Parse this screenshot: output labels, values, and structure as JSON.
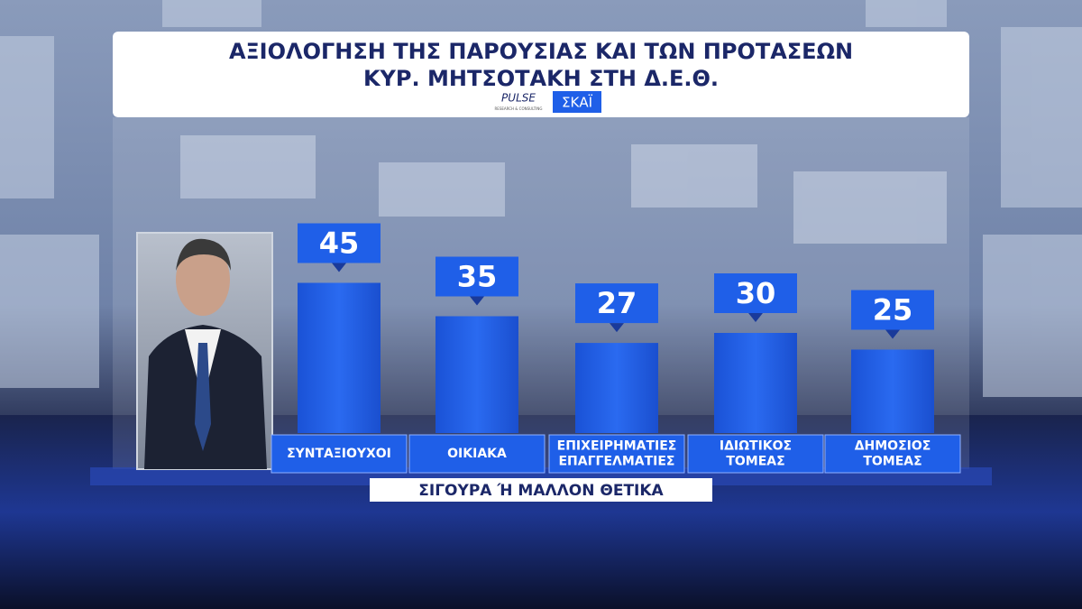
{
  "chart_data": {
    "type": "bar",
    "title": [
      "ΑΞΙΟΛΟΓΗΣΗ ΤΗΣ ΠΑΡΟΥΣΙΑΣ ΚΑΙ ΤΩΝ ΠΡΟΤΑΣΕΩΝ",
      "ΚΥΡ. ΜΗΤΣΟΤΑΚΗ ΣΤΗ Δ.Ε.Θ."
    ],
    "logos": [
      "PULSE",
      "RESEARCH & CONSULTING",
      "ΣΚΑΪ"
    ],
    "categories": [
      "ΣΥΝΤΑΞΙΟΥΧΟΙ",
      "ΟΙΚΙΑΚΑ",
      "ΕΠΙΧΕΙΡΗΜΑΤΙΕΣ\nΕΠΑΓΓΕΛΜΑΤΙΕΣ",
      "ΙΔΙΩΤΙΚΟΣ\nΤΟΜΕΑΣ",
      "ΔΗΜΟΣΙΟΣ\nΤΟΜΕΑΣ"
    ],
    "values": [
      45,
      35,
      27,
      30,
      25
    ],
    "color": "#1f5fe8",
    "x_label": "ΣΙΓΟΥΡΑ Ή ΜΑΛΛΟΝ ΘΕΤΙΚΑ"
  }
}
